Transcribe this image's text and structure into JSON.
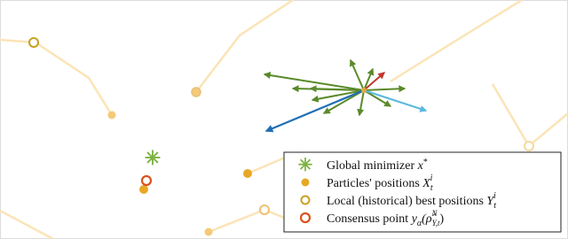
{
  "legend": [
    {
      "label": "Global minimizer",
      "math": "x",
      "sup": "*"
    },
    {
      "label": "Particles' positions",
      "math": "X",
      "sub": "t",
      "sup": "i"
    },
    {
      "label": "Local (historical) best positions",
      "math": "Y",
      "sub": "t",
      "sup": "i"
    },
    {
      "label": "Consensus point",
      "math": "y",
      "sub": "α",
      "open": "(ρ̂",
      "argsup": "N",
      "argsub": "Y,t",
      "close": ")"
    }
  ]
}
